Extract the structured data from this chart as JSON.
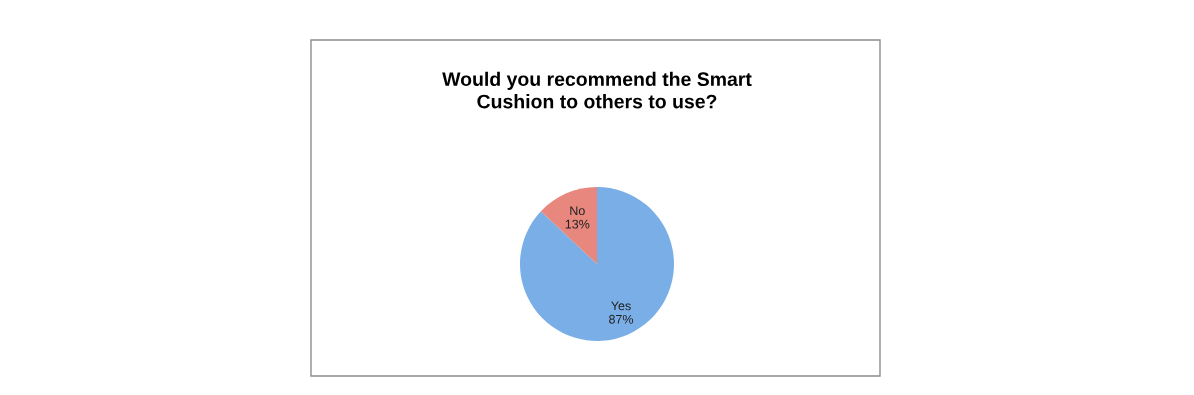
{
  "chart_data": {
    "type": "pie",
    "title": "Would you recommend the Smart\nCushion to others to use?",
    "categories": [
      "Yes",
      "No"
    ],
    "values": [
      87,
      13
    ],
    "colors": [
      "#7aaee6",
      "#e8877e"
    ],
    "value_labels": [
      "87%",
      "13%"
    ]
  }
}
